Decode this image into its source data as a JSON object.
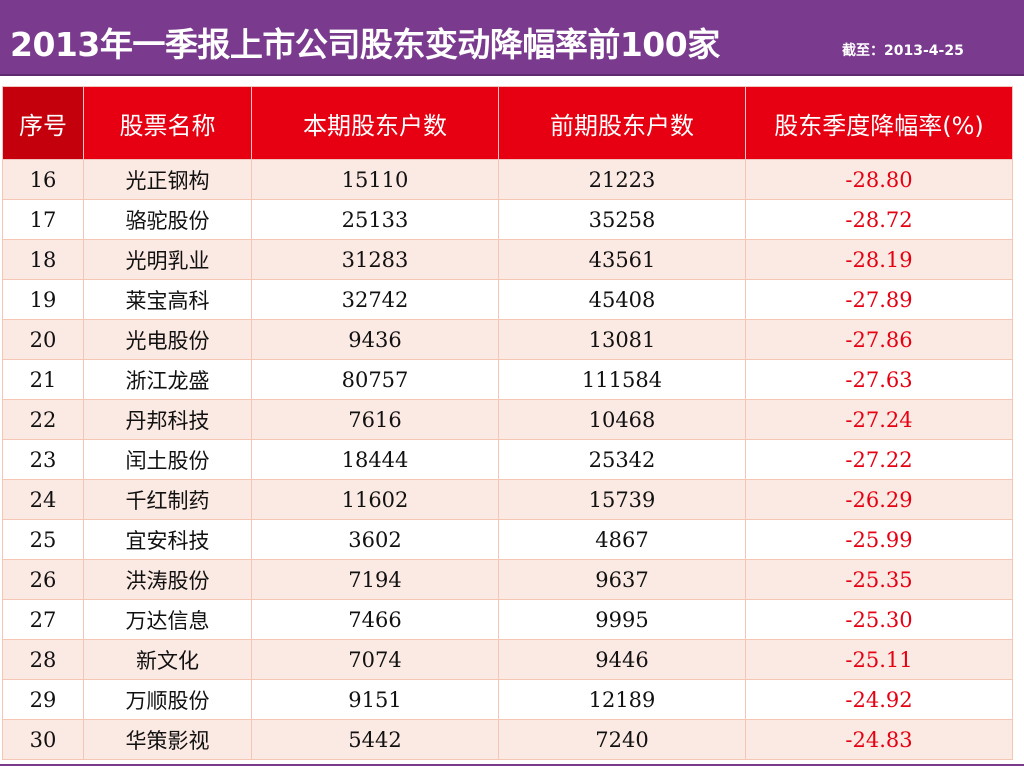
{
  "header": {
    "title": "2013年一季报上市公司股东变动降幅率前100家",
    "subtitle": "截至：2013-4-25"
  },
  "table": {
    "columns": [
      "序号",
      "股票名称",
      "本期股东户数",
      "前期股东户数",
      "股东季度降幅率(%)"
    ],
    "rows": [
      [
        "16",
        "光正钢构",
        "15110",
        "21223",
        "-28.80"
      ],
      [
        "17",
        "骆驼股份",
        "25133",
        "35258",
        "-28.72"
      ],
      [
        "18",
        "光明乳业",
        "31283",
        "43561",
        "-28.19"
      ],
      [
        "19",
        "莱宝高科",
        "32742",
        "45408",
        "-27.89"
      ],
      [
        "20",
        "光电股份",
        "9436",
        "13081",
        "-27.86"
      ],
      [
        "21",
        "浙江龙盛",
        "80757",
        "111584",
        "-27.63"
      ],
      [
        "22",
        "丹邦科技",
        "7616",
        "10468",
        "-27.24"
      ],
      [
        "23",
        "闰土股份",
        "18444",
        "25342",
        "-27.22"
      ],
      [
        "24",
        "千红制药",
        "11602",
        "15739",
        "-26.29"
      ],
      [
        "25",
        "宜安科技",
        "3602",
        "4867",
        "-25.99"
      ],
      [
        "26",
        "洪涛股份",
        "7194",
        "9637",
        "-25.35"
      ],
      [
        "27",
        "万达信息",
        "7466",
        "9995",
        "-25.30"
      ],
      [
        "28",
        "新文化",
        "7074",
        "9446",
        "-25.11"
      ],
      [
        "29",
        "万顺股份",
        "9151",
        "12189",
        "-24.92"
      ],
      [
        "30",
        "华策影视",
        "5442",
        "7240",
        "-24.83"
      ]
    ]
  },
  "colors": {
    "title_bar": "#7a3a8e",
    "header_bg": "#e60012",
    "rate_text": "#e60012",
    "stripe": "#fbe9e3"
  }
}
